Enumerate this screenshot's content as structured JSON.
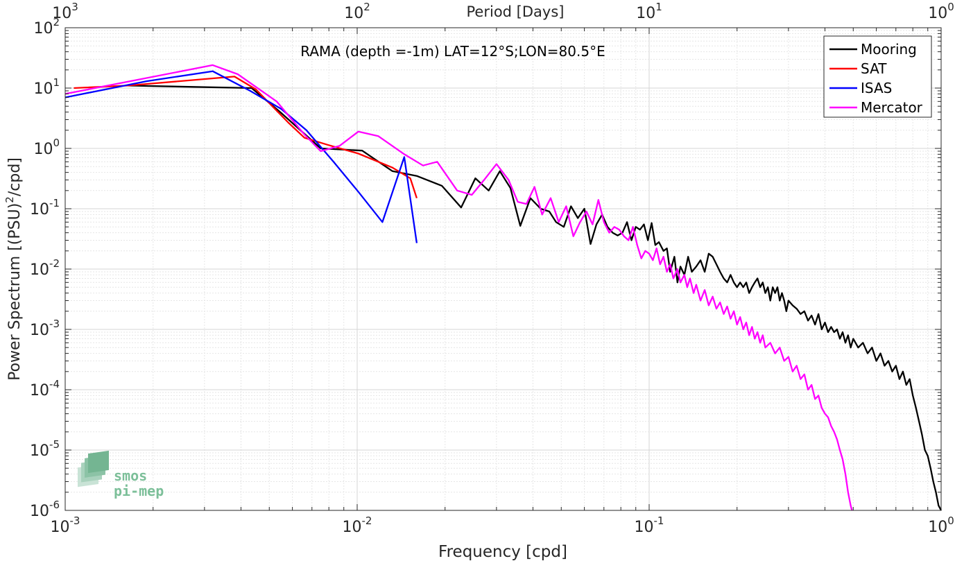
{
  "chart_data": {
    "type": "line",
    "title": "RAMA (depth =-1m) LAT=12°S;LON=80.5°E",
    "xlabel": "Frequency [cpd]",
    "ylabel": "Power Spectrum [(PSU)",
    "ylabel_sup": "2",
    "ylabel_tail": "/cpd]",
    "top_axis_label": "Period [Days]",
    "xscale": "log",
    "yscale": "log",
    "xlim": [
      0.001,
      1
    ],
    "ylim": [
      1e-06,
      100
    ],
    "grid": true,
    "legend_position": "top-right",
    "x_ticks": [
      {
        "value": 0.001,
        "base": "10",
        "exp": "-3"
      },
      {
        "value": 0.01,
        "base": "10",
        "exp": "-2"
      },
      {
        "value": 0.1,
        "base": "10",
        "exp": "-1"
      },
      {
        "value": 1,
        "base": "10",
        "exp": "0"
      }
    ],
    "y_ticks": [
      {
        "value": 1e-06,
        "base": "10",
        "exp": "-6"
      },
      {
        "value": 1e-05,
        "base": "10",
        "exp": "-5"
      },
      {
        "value": 0.0001,
        "base": "10",
        "exp": "-4"
      },
      {
        "value": 0.001,
        "base": "10",
        "exp": "-3"
      },
      {
        "value": 0.01,
        "base": "10",
        "exp": "-2"
      },
      {
        "value": 0.1,
        "base": "10",
        "exp": "-1"
      },
      {
        "value": 1,
        "base": "10",
        "exp": "0"
      },
      {
        "value": 10,
        "base": "10",
        "exp": "1"
      },
      {
        "value": 100,
        "base": "10",
        "exp": "2"
      }
    ],
    "top_ticks": [
      {
        "period": 1000,
        "base": "10",
        "exp": "3"
      },
      {
        "period": 100,
        "base": "10",
        "exp": "2"
      },
      {
        "period": 10,
        "base": "10",
        "exp": "1"
      },
      {
        "period": 1,
        "base": "10",
        "exp": "0"
      }
    ],
    "series": [
      {
        "name": "Mooring",
        "color": "#000000",
        "points": [
          [
            0.00164,
            11.0
          ],
          [
            0.00435,
            10.0
          ],
          [
            0.00545,
            4.0
          ],
          [
            0.0075,
            1.0
          ],
          [
            0.0104,
            0.92
          ],
          [
            0.0132,
            0.42
          ],
          [
            0.016,
            0.35
          ],
          [
            0.0195,
            0.24
          ],
          [
            0.0227,
            0.105
          ],
          [
            0.0254,
            0.32
          ],
          [
            0.0282,
            0.2
          ],
          [
            0.0308,
            0.42
          ],
          [
            0.0335,
            0.22
          ],
          [
            0.0362,
            0.052
          ],
          [
            0.0392,
            0.15
          ],
          [
            0.0425,
            0.1
          ],
          [
            0.0455,
            0.09
          ],
          [
            0.048,
            0.06
          ],
          [
            0.051,
            0.05
          ],
          [
            0.054,
            0.11
          ],
          [
            0.057,
            0.07
          ],
          [
            0.06,
            0.1
          ],
          [
            0.063,
            0.026
          ],
          [
            0.066,
            0.055
          ],
          [
            0.069,
            0.08
          ],
          [
            0.072,
            0.05
          ],
          [
            0.075,
            0.04
          ],
          [
            0.078,
            0.036
          ],
          [
            0.081,
            0.04
          ],
          [
            0.084,
            0.06
          ],
          [
            0.087,
            0.03
          ],
          [
            0.09,
            0.05
          ],
          [
            0.093,
            0.045
          ],
          [
            0.096,
            0.055
          ],
          [
            0.099,
            0.03
          ],
          [
            0.102,
            0.058
          ],
          [
            0.105,
            0.025
          ],
          [
            0.108,
            0.028
          ],
          [
            0.112,
            0.02
          ],
          [
            0.115,
            0.022
          ],
          [
            0.118,
            0.009
          ],
          [
            0.122,
            0.016
          ],
          [
            0.125,
            0.006
          ],
          [
            0.128,
            0.011
          ],
          [
            0.132,
            0.008
          ],
          [
            0.136,
            0.016
          ],
          [
            0.14,
            0.009
          ],
          [
            0.145,
            0.011
          ],
          [
            0.15,
            0.014
          ],
          [
            0.155,
            0.009
          ],
          [
            0.16,
            0.018
          ],
          [
            0.165,
            0.016
          ],
          [
            0.17,
            0.012
          ],
          [
            0.175,
            0.009
          ],
          [
            0.18,
            0.007
          ],
          [
            0.185,
            0.006
          ],
          [
            0.19,
            0.008
          ],
          [
            0.195,
            0.006
          ],
          [
            0.2,
            0.005
          ],
          [
            0.205,
            0.006
          ],
          [
            0.21,
            0.005
          ],
          [
            0.215,
            0.006
          ],
          [
            0.22,
            0.004
          ],
          [
            0.225,
            0.005
          ],
          [
            0.23,
            0.006
          ],
          [
            0.235,
            0.007
          ],
          [
            0.24,
            0.005
          ],
          [
            0.245,
            0.006
          ],
          [
            0.25,
            0.004
          ],
          [
            0.255,
            0.005
          ],
          [
            0.26,
            0.003
          ],
          [
            0.265,
            0.005
          ],
          [
            0.27,
            0.004
          ],
          [
            0.275,
            0.005
          ],
          [
            0.28,
            0.003
          ],
          [
            0.285,
            0.004
          ],
          [
            0.29,
            0.003
          ],
          [
            0.295,
            0.002
          ],
          [
            0.3,
            0.003
          ],
          [
            0.31,
            0.0025
          ],
          [
            0.32,
            0.0022
          ],
          [
            0.33,
            0.0018
          ],
          [
            0.34,
            0.002
          ],
          [
            0.35,
            0.0014
          ],
          [
            0.36,
            0.0017
          ],
          [
            0.37,
            0.0012
          ],
          [
            0.38,
            0.0018
          ],
          [
            0.39,
            0.001
          ],
          [
            0.4,
            0.0013
          ],
          [
            0.41,
            0.0009
          ],
          [
            0.42,
            0.0011
          ],
          [
            0.43,
            0.0009
          ],
          [
            0.44,
            0.001
          ],
          [
            0.45,
            0.0007
          ],
          [
            0.46,
            0.0009
          ],
          [
            0.47,
            0.0006
          ],
          [
            0.48,
            0.0008
          ],
          [
            0.49,
            0.0005
          ],
          [
            0.5,
            0.0007
          ],
          [
            0.52,
            0.0005
          ],
          [
            0.54,
            0.0006
          ],
          [
            0.56,
            0.0004
          ],
          [
            0.58,
            0.0005
          ],
          [
            0.6,
            0.0003
          ],
          [
            0.62,
            0.0004
          ],
          [
            0.64,
            0.00025
          ],
          [
            0.66,
            0.0003
          ],
          [
            0.68,
            0.0002
          ],
          [
            0.7,
            0.00025
          ],
          [
            0.72,
            0.00015
          ],
          [
            0.74,
            0.0002
          ],
          [
            0.76,
            0.00012
          ],
          [
            0.78,
            0.00015
          ],
          [
            0.8,
            8e-05
          ],
          [
            0.82,
            5e-05
          ],
          [
            0.84,
            3e-05
          ],
          [
            0.86,
            1.8e-05
          ],
          [
            0.88,
            1e-05
          ],
          [
            0.9,
            8e-06
          ],
          [
            0.92,
            5e-06
          ],
          [
            0.94,
            3e-06
          ],
          [
            0.96,
            2e-06
          ],
          [
            0.98,
            1.2e-06
          ],
          [
            1.0,
            1e-06
          ]
        ]
      },
      {
        "name": "SAT",
        "color": "#ff0000",
        "points": [
          [
            0.00107,
            10.0
          ],
          [
            0.00164,
            11.0
          ],
          [
            0.0038,
            15.5
          ],
          [
            0.0045,
            9.5
          ],
          [
            0.0058,
            2.7
          ],
          [
            0.0066,
            1.5
          ],
          [
            0.0079,
            1.15
          ],
          [
            0.0101,
            0.82
          ],
          [
            0.0132,
            0.48
          ],
          [
            0.0152,
            0.32
          ],
          [
            0.016,
            0.15
          ]
        ]
      },
      {
        "name": "ISAS",
        "color": "#0000ff",
        "points": [
          [
            0.001,
            7.0
          ],
          [
            0.0019,
            13.0
          ],
          [
            0.0032,
            19.0
          ],
          [
            0.0043,
            9.0
          ],
          [
            0.0055,
            4.5
          ],
          [
            0.0067,
            2.0
          ],
          [
            0.0083,
            0.6
          ],
          [
            0.0101,
            0.19
          ],
          [
            0.0122,
            0.06
          ],
          [
            0.0145,
            0.72
          ],
          [
            0.016,
            0.027
          ]
        ]
      },
      {
        "name": "Mercator",
        "color": "#ff00ff",
        "points": [
          [
            0.001,
            8.0
          ],
          [
            0.0032,
            24.0
          ],
          [
            0.0039,
            17.0
          ],
          [
            0.0053,
            6.0
          ],
          [
            0.0066,
            1.7
          ],
          [
            0.0075,
            0.9
          ],
          [
            0.0087,
            1.1
          ],
          [
            0.0101,
            1.9
          ],
          [
            0.0118,
            1.6
          ],
          [
            0.0145,
            0.8
          ],
          [
            0.0168,
            0.52
          ],
          [
            0.0188,
            0.6
          ],
          [
            0.022,
            0.2
          ],
          [
            0.0247,
            0.17
          ],
          [
            0.0272,
            0.3
          ],
          [
            0.03,
            0.55
          ],
          [
            0.033,
            0.3
          ],
          [
            0.0355,
            0.13
          ],
          [
            0.038,
            0.12
          ],
          [
            0.0405,
            0.23
          ],
          [
            0.043,
            0.08
          ],
          [
            0.046,
            0.15
          ],
          [
            0.049,
            0.06
          ],
          [
            0.052,
            0.11
          ],
          [
            0.055,
            0.035
          ],
          [
            0.058,
            0.06
          ],
          [
            0.061,
            0.09
          ],
          [
            0.064,
            0.055
          ],
          [
            0.067,
            0.14
          ],
          [
            0.07,
            0.06
          ],
          [
            0.073,
            0.04
          ],
          [
            0.076,
            0.05
          ],
          [
            0.079,
            0.045
          ],
          [
            0.082,
            0.035
          ],
          [
            0.085,
            0.03
          ],
          [
            0.088,
            0.05
          ],
          [
            0.091,
            0.025
          ],
          [
            0.094,
            0.015
          ],
          [
            0.097,
            0.02
          ],
          [
            0.1,
            0.018
          ],
          [
            0.103,
            0.014
          ],
          [
            0.106,
            0.022
          ],
          [
            0.109,
            0.012
          ],
          [
            0.112,
            0.016
          ],
          [
            0.115,
            0.009
          ],
          [
            0.118,
            0.012
          ],
          [
            0.121,
            0.007
          ],
          [
            0.125,
            0.01
          ],
          [
            0.128,
            0.006
          ],
          [
            0.132,
            0.008
          ],
          [
            0.135,
            0.005
          ],
          [
            0.138,
            0.007
          ],
          [
            0.142,
            0.004
          ],
          [
            0.145,
            0.0055
          ],
          [
            0.15,
            0.003
          ],
          [
            0.155,
            0.0045
          ],
          [
            0.16,
            0.0025
          ],
          [
            0.165,
            0.0035
          ],
          [
            0.17,
            0.0022
          ],
          [
            0.175,
            0.0028
          ],
          [
            0.18,
            0.0018
          ],
          [
            0.185,
            0.0024
          ],
          [
            0.19,
            0.0015
          ],
          [
            0.195,
            0.002
          ],
          [
            0.2,
            0.0012
          ],
          [
            0.205,
            0.0016
          ],
          [
            0.21,
            0.001
          ],
          [
            0.215,
            0.0013
          ],
          [
            0.22,
            0.0008
          ],
          [
            0.225,
            0.0011
          ],
          [
            0.23,
            0.0007
          ],
          [
            0.235,
            0.0009
          ],
          [
            0.24,
            0.0006
          ],
          [
            0.245,
            0.0008
          ],
          [
            0.25,
            0.0005
          ],
          [
            0.26,
            0.0006
          ],
          [
            0.27,
            0.0004
          ],
          [
            0.28,
            0.0005
          ],
          [
            0.29,
            0.0003
          ],
          [
            0.3,
            0.00035
          ],
          [
            0.31,
            0.0002
          ],
          [
            0.32,
            0.00025
          ],
          [
            0.33,
            0.00015
          ],
          [
            0.34,
            0.00018
          ],
          [
            0.35,
            0.0001
          ],
          [
            0.36,
            0.00012
          ],
          [
            0.37,
            7e-05
          ],
          [
            0.38,
            8e-05
          ],
          [
            0.39,
            5e-05
          ],
          [
            0.4,
            4e-05
          ],
          [
            0.41,
            3.5e-05
          ],
          [
            0.42,
            2.5e-05
          ],
          [
            0.43,
            2e-05
          ],
          [
            0.44,
            1.5e-05
          ],
          [
            0.45,
            1e-05
          ],
          [
            0.46,
            7e-06
          ],
          [
            0.47,
            4e-06
          ],
          [
            0.48,
            2e-06
          ],
          [
            0.49,
            1.2e-06
          ],
          [
            0.495,
            1e-06
          ]
        ]
      }
    ]
  },
  "logo": {
    "line1": "smos",
    "line2": "pi-mep"
  }
}
